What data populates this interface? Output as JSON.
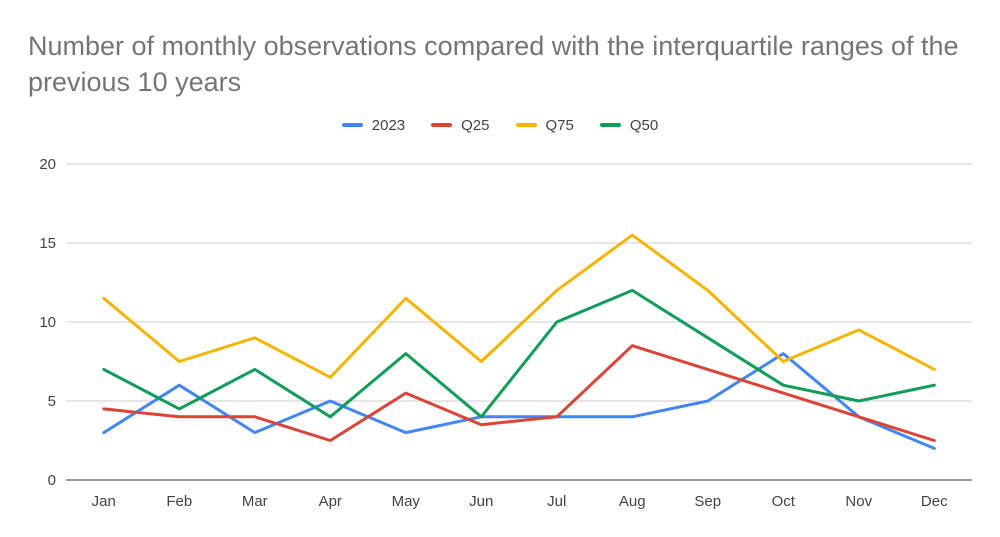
{
  "title": "Number of monthly observations compared with the interquartile ranges of the previous 10 years",
  "chart_data": {
    "type": "line",
    "title": "Number of monthly observations compared with the interquartile ranges of the previous 10 years",
    "xlabel": "",
    "ylabel": "",
    "ylim": [
      0,
      20
    ],
    "yticks": [
      "0",
      "5",
      "10",
      "15",
      "20"
    ],
    "grid": true,
    "legend_position": "top",
    "categories": [
      "Jan",
      "Feb",
      "Mar",
      "Apr",
      "May",
      "Jun",
      "Jul",
      "Aug",
      "Sep",
      "Oct",
      "Nov",
      "Dec"
    ],
    "series": [
      {
        "name": "2023",
        "color": "#4285f4",
        "values": [
          3,
          6,
          3,
          5,
          3,
          4,
          4,
          4,
          5,
          8,
          4,
          2
        ]
      },
      {
        "name": "Q25",
        "color": "#db4437",
        "values": [
          4.5,
          4,
          4,
          2.5,
          5.5,
          3.5,
          4,
          8.5,
          7,
          5.5,
          4,
          2.5
        ]
      },
      {
        "name": "Q75",
        "color": "#f4b400",
        "values": [
          11.5,
          7.5,
          9,
          6.5,
          11.5,
          7.5,
          12,
          15.5,
          12,
          7.5,
          9.5,
          7
        ]
      },
      {
        "name": "Q50",
        "color": "#0f9d58",
        "values": [
          7,
          4.5,
          7,
          4,
          8,
          4,
          10,
          12,
          9,
          6,
          5,
          6
        ]
      }
    ]
  }
}
